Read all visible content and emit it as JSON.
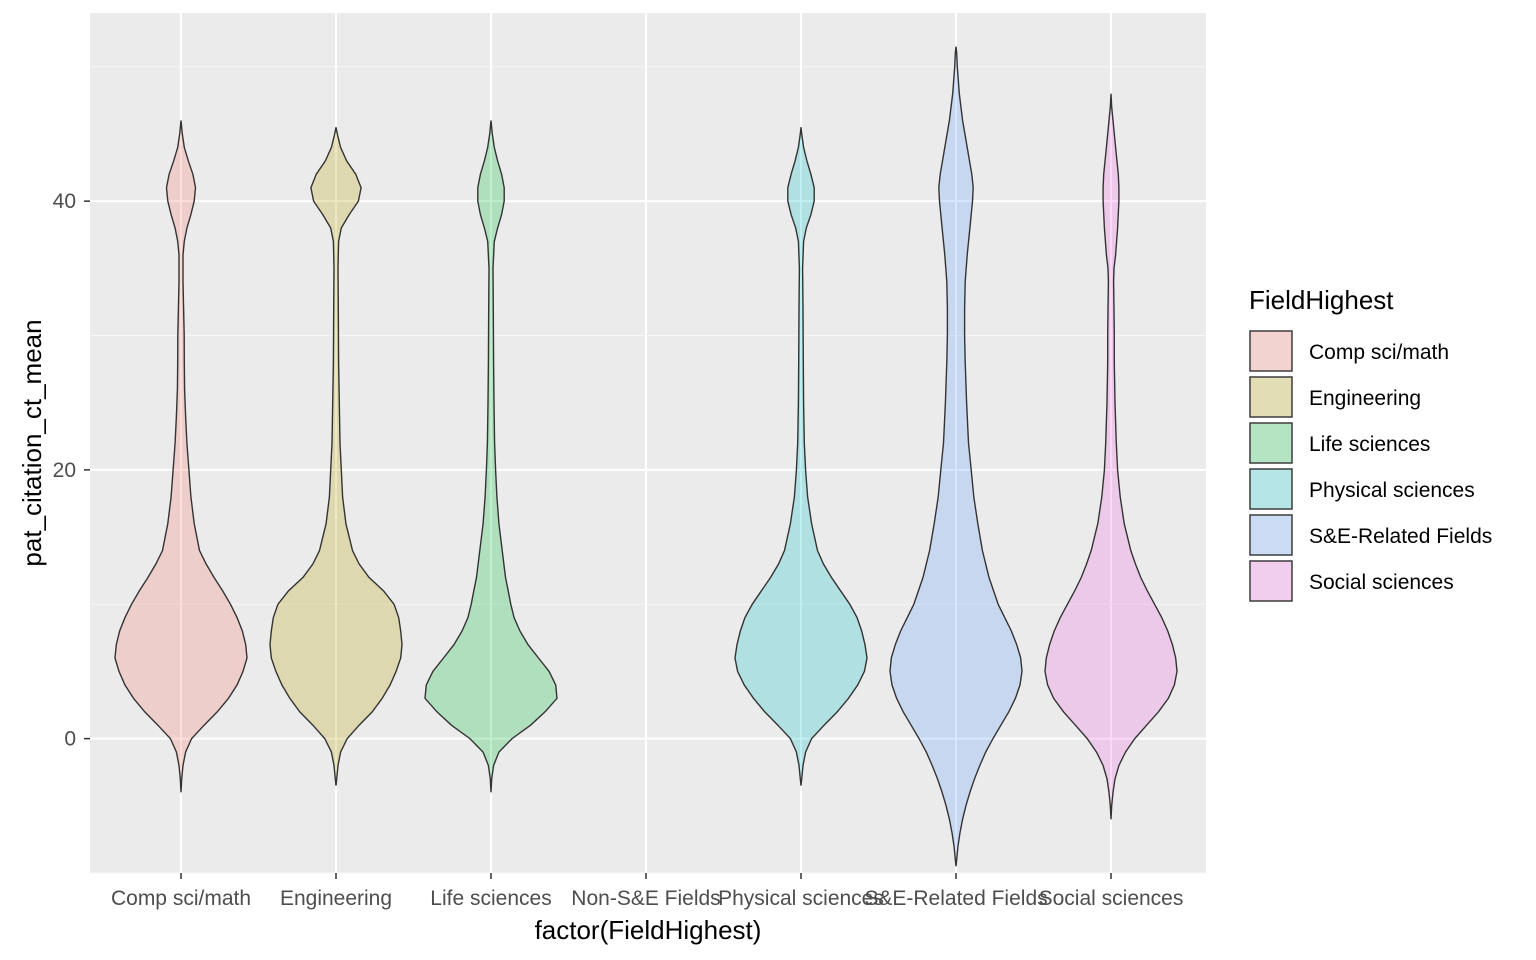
{
  "chart_data": {
    "type": "violin",
    "xlabel": "factor(FieldHighest)",
    "ylabel": "pat_citation_ct_mean",
    "ylim": [
      -10,
      54
    ],
    "y_ticks": [
      0,
      20,
      40
    ],
    "y_tick_labels": [
      "0",
      "20",
      "40"
    ],
    "categories": [
      "Comp sci/math",
      "Engineering",
      "Life sciences",
      "Non-S&E Fields",
      "Physical sciences",
      "S&E-Related Fields",
      "Social sciences"
    ],
    "legend": {
      "title": "FieldHighest",
      "placement": "right",
      "entries": [
        "Comp sci/math",
        "Engineering",
        "Life sciences",
        "Physical sciences",
        "S&E-Related Fields",
        "Social sciences"
      ]
    },
    "fill_alpha": 0.25,
    "series": [
      {
        "category": "Comp sci/math",
        "color": "#F8766D",
        "profile": [
          [
            -4,
            0
          ],
          [
            -3,
            0.01
          ],
          [
            -2,
            0.03
          ],
          [
            -1,
            0.07
          ],
          [
            0,
            0.16
          ],
          [
            1,
            0.35
          ],
          [
            2,
            0.55
          ],
          [
            3,
            0.72
          ],
          [
            4,
            0.85
          ],
          [
            5,
            0.94
          ],
          [
            6,
            1.0
          ],
          [
            7,
            0.98
          ],
          [
            8,
            0.93
          ],
          [
            9,
            0.85
          ],
          [
            10,
            0.75
          ],
          [
            11,
            0.63
          ],
          [
            12,
            0.5
          ],
          [
            13,
            0.38
          ],
          [
            14,
            0.28
          ],
          [
            16,
            0.2
          ],
          [
            18,
            0.15
          ],
          [
            20,
            0.12
          ],
          [
            22,
            0.09
          ],
          [
            24,
            0.07
          ],
          [
            26,
            0.055
          ],
          [
            28,
            0.05
          ],
          [
            30,
            0.048
          ],
          [
            32,
            0.04
          ],
          [
            34,
            0.03
          ],
          [
            36,
            0.03
          ],
          [
            37,
            0.05
          ],
          [
            38,
            0.09
          ],
          [
            39,
            0.15
          ],
          [
            40,
            0.2
          ],
          [
            41,
            0.22
          ],
          [
            42,
            0.18
          ],
          [
            43,
            0.11
          ],
          [
            44,
            0.05
          ],
          [
            45,
            0.02
          ],
          [
            46,
            0
          ]
        ]
      },
      {
        "category": "Engineering",
        "color": "#B79F00",
        "profile": [
          [
            -3.5,
            0
          ],
          [
            -3,
            0.01
          ],
          [
            -2,
            0.03
          ],
          [
            -1,
            0.07
          ],
          [
            0,
            0.17
          ],
          [
            1,
            0.35
          ],
          [
            2,
            0.55
          ],
          [
            3,
            0.7
          ],
          [
            4,
            0.82
          ],
          [
            5,
            0.91
          ],
          [
            6,
            0.98
          ],
          [
            7,
            1.0
          ],
          [
            8,
            0.98
          ],
          [
            9,
            0.95
          ],
          [
            10,
            0.88
          ],
          [
            11,
            0.72
          ],
          [
            12,
            0.5
          ],
          [
            13,
            0.35
          ],
          [
            14,
            0.25
          ],
          [
            16,
            0.15
          ],
          [
            18,
            0.1
          ],
          [
            20,
            0.08
          ],
          [
            22,
            0.06
          ],
          [
            25,
            0.05
          ],
          [
            28,
            0.04
          ],
          [
            32,
            0.035
          ],
          [
            35,
            0.03
          ],
          [
            37,
            0.04
          ],
          [
            38,
            0.08
          ],
          [
            39,
            0.2
          ],
          [
            40,
            0.34
          ],
          [
            41,
            0.38
          ],
          [
            42,
            0.3
          ],
          [
            43,
            0.16
          ],
          [
            44,
            0.07
          ],
          [
            45,
            0.02
          ],
          [
            45.5,
            0
          ]
        ]
      },
      {
        "category": "Life sciences",
        "color": "#00BA38",
        "profile": [
          [
            -4,
            0
          ],
          [
            -3,
            0.01
          ],
          [
            -2,
            0.04
          ],
          [
            -1,
            0.12
          ],
          [
            0,
            0.32
          ],
          [
            1,
            0.6
          ],
          [
            2,
            0.82
          ],
          [
            3,
            1.0
          ],
          [
            4,
            0.98
          ],
          [
            5,
            0.88
          ],
          [
            6,
            0.72
          ],
          [
            7,
            0.56
          ],
          [
            8,
            0.44
          ],
          [
            9,
            0.35
          ],
          [
            10,
            0.3
          ],
          [
            11,
            0.26
          ],
          [
            12,
            0.22
          ],
          [
            14,
            0.17
          ],
          [
            16,
            0.12
          ],
          [
            18,
            0.09
          ],
          [
            20,
            0.07
          ],
          [
            22,
            0.055
          ],
          [
            25,
            0.045
          ],
          [
            28,
            0.04
          ],
          [
            32,
            0.035
          ],
          [
            35,
            0.03
          ],
          [
            37,
            0.05
          ],
          [
            38,
            0.1
          ],
          [
            39,
            0.16
          ],
          [
            40,
            0.2
          ],
          [
            41,
            0.2
          ],
          [
            42,
            0.16
          ],
          [
            43,
            0.1
          ],
          [
            44,
            0.05
          ],
          [
            45,
            0.02
          ],
          [
            46,
            0
          ]
        ]
      },
      {
        "category": "Physical sciences",
        "color": "#00BFC4",
        "profile": [
          [
            -3.5,
            0
          ],
          [
            -3,
            0.01
          ],
          [
            -2,
            0.03
          ],
          [
            -1,
            0.07
          ],
          [
            0,
            0.16
          ],
          [
            1,
            0.35
          ],
          [
            2,
            0.55
          ],
          [
            3,
            0.72
          ],
          [
            4,
            0.86
          ],
          [
            5,
            0.96
          ],
          [
            6,
            1.0
          ],
          [
            7,
            0.97
          ],
          [
            8,
            0.92
          ],
          [
            9,
            0.85
          ],
          [
            10,
            0.74
          ],
          [
            11,
            0.6
          ],
          [
            12,
            0.46
          ],
          [
            13,
            0.34
          ],
          [
            14,
            0.25
          ],
          [
            16,
            0.16
          ],
          [
            18,
            0.1
          ],
          [
            20,
            0.07
          ],
          [
            22,
            0.05
          ],
          [
            25,
            0.04
          ],
          [
            28,
            0.035
          ],
          [
            32,
            0.03
          ],
          [
            35,
            0.025
          ],
          [
            37,
            0.04
          ],
          [
            38,
            0.08
          ],
          [
            39,
            0.15
          ],
          [
            40,
            0.2
          ],
          [
            41,
            0.2
          ],
          [
            42,
            0.15
          ],
          [
            43,
            0.09
          ],
          [
            44,
            0.04
          ],
          [
            45,
            0.01
          ],
          [
            45.5,
            0
          ]
        ]
      },
      {
        "category": "S&E-Related Fields",
        "color": "#619CFF",
        "profile": [
          [
            -9.5,
            0
          ],
          [
            -8,
            0.03
          ],
          [
            -7,
            0.06
          ],
          [
            -6,
            0.1
          ],
          [
            -5,
            0.15
          ],
          [
            -4,
            0.21
          ],
          [
            -3,
            0.28
          ],
          [
            -2,
            0.36
          ],
          [
            -1,
            0.45
          ],
          [
            0,
            0.56
          ],
          [
            1,
            0.68
          ],
          [
            2,
            0.8
          ],
          [
            3,
            0.9
          ],
          [
            4,
            0.97
          ],
          [
            5,
            1.0
          ],
          [
            6,
            0.98
          ],
          [
            7,
            0.92
          ],
          [
            8,
            0.84
          ],
          [
            9,
            0.74
          ],
          [
            10,
            0.64
          ],
          [
            12,
            0.5
          ],
          [
            14,
            0.4
          ],
          [
            16,
            0.33
          ],
          [
            18,
            0.27
          ],
          [
            20,
            0.23
          ],
          [
            22,
            0.19
          ],
          [
            25,
            0.16
          ],
          [
            28,
            0.14
          ],
          [
            30,
            0.13
          ],
          [
            32,
            0.13
          ],
          [
            34,
            0.14
          ],
          [
            36,
            0.17
          ],
          [
            38,
            0.21
          ],
          [
            40,
            0.25
          ],
          [
            41,
            0.26
          ],
          [
            42,
            0.24
          ],
          [
            44,
            0.17
          ],
          [
            46,
            0.1
          ],
          [
            48,
            0.05
          ],
          [
            50,
            0.02
          ],
          [
            51,
            0.01
          ],
          [
            51.5,
            0
          ]
        ]
      },
      {
        "category": "Social sciences",
        "color": "#F564E3",
        "profile": [
          [
            -6,
            0
          ],
          [
            -5,
            0.01
          ],
          [
            -4,
            0.03
          ],
          [
            -3,
            0.06
          ],
          [
            -2,
            0.12
          ],
          [
            -1,
            0.22
          ],
          [
            0,
            0.36
          ],
          [
            1,
            0.54
          ],
          [
            2,
            0.72
          ],
          [
            3,
            0.87
          ],
          [
            4,
            0.96
          ],
          [
            5,
            1.0
          ],
          [
            6,
            0.98
          ],
          [
            7,
            0.93
          ],
          [
            8,
            0.86
          ],
          [
            9,
            0.77
          ],
          [
            10,
            0.66
          ],
          [
            11,
            0.55
          ],
          [
            12,
            0.45
          ],
          [
            13,
            0.37
          ],
          [
            14,
            0.3
          ],
          [
            16,
            0.2
          ],
          [
            18,
            0.14
          ],
          [
            20,
            0.1
          ],
          [
            22,
            0.08
          ],
          [
            25,
            0.06
          ],
          [
            28,
            0.05
          ],
          [
            30,
            0.05
          ],
          [
            32,
            0.045
          ],
          [
            34,
            0.04
          ],
          [
            35,
            0.045
          ],
          [
            36,
            0.07
          ],
          [
            38,
            0.1
          ],
          [
            40,
            0.12
          ],
          [
            41,
            0.12
          ],
          [
            42,
            0.11
          ],
          [
            44,
            0.07
          ],
          [
            46,
            0.03
          ],
          [
            47,
            0.01
          ],
          [
            48,
            0
          ]
        ]
      }
    ]
  }
}
